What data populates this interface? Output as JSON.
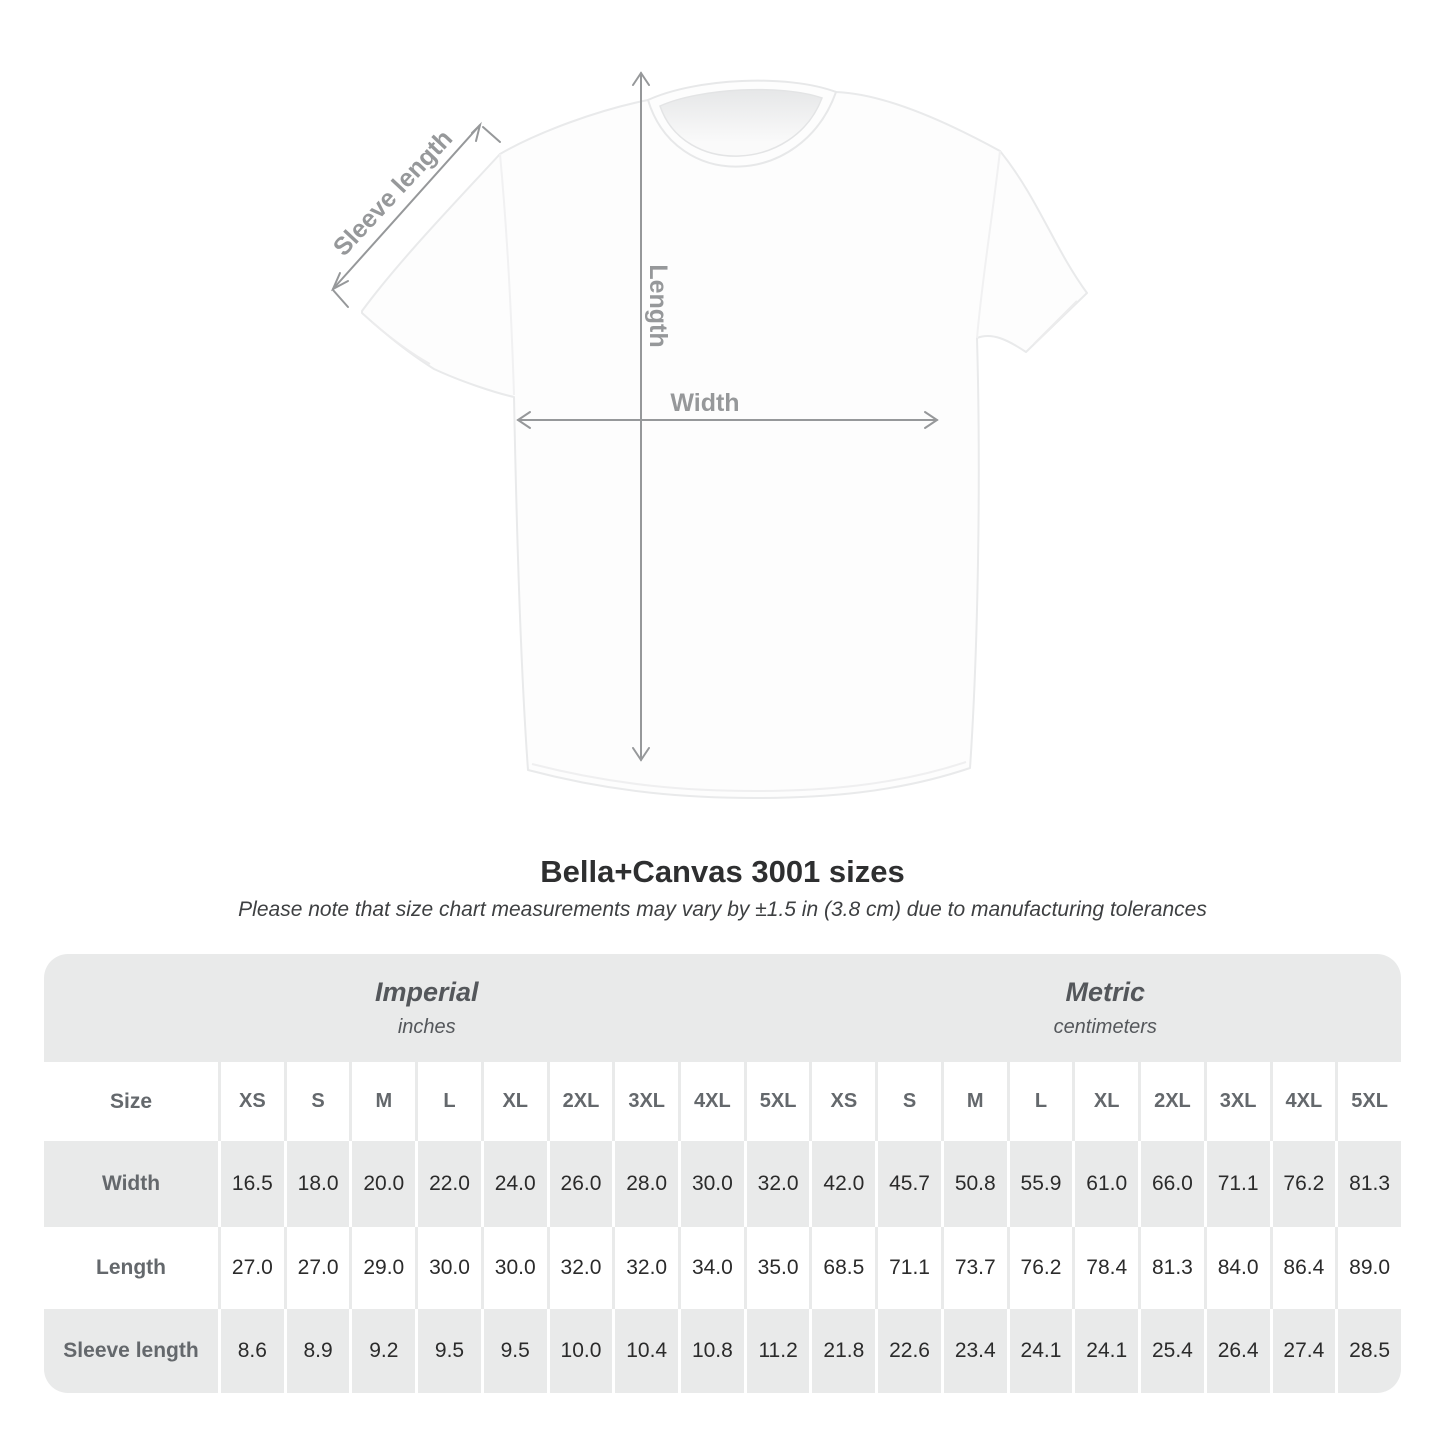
{
  "colors": {
    "band_gray": "#e9eaea",
    "arrow_gray": "#96989a",
    "label_text": "#64686c",
    "value_text": "#2b2b2b",
    "title_text": "#2e2f30"
  },
  "diagram": {
    "sleeve_label": "Sleeve length",
    "length_label": "Length",
    "width_label": "Width"
  },
  "heading": {
    "title": "Bella+Canvas 3001 sizes",
    "subtitle": "Please note that size chart measurements may vary by ±1.5 in (3.8 cm) due to manufacturing tolerances"
  },
  "size_table": {
    "corner_label": "Size",
    "groups": [
      {
        "name": "Imperial",
        "unit": "inches"
      },
      {
        "name": "Metric",
        "unit": "centimeters"
      }
    ],
    "sizes": [
      "XS",
      "S",
      "M",
      "L",
      "XL",
      "2XL",
      "3XL",
      "4XL",
      "5XL"
    ],
    "rows": [
      {
        "label": "Width",
        "imperial": [
          "16.5",
          "18.0",
          "20.0",
          "22.0",
          "24.0",
          "26.0",
          "28.0",
          "30.0",
          "32.0"
        ],
        "metric": [
          "42.0",
          "45.7",
          "50.8",
          "55.9",
          "61.0",
          "66.0",
          "71.1",
          "76.2",
          "81.3"
        ]
      },
      {
        "label": "Length",
        "imperial": [
          "27.0",
          "27.0",
          "29.0",
          "30.0",
          "30.0",
          "32.0",
          "32.0",
          "34.0",
          "35.0"
        ],
        "metric": [
          "68.5",
          "71.1",
          "73.7",
          "76.2",
          "78.4",
          "81.3",
          "84.0",
          "86.4",
          "89.0"
        ]
      },
      {
        "label": "Sleeve length",
        "imperial": [
          "8.6",
          "8.9",
          "9.2",
          "9.5",
          "9.5",
          "10.0",
          "10.4",
          "10.8",
          "11.2"
        ],
        "metric": [
          "21.8",
          "22.6",
          "23.4",
          "24.1",
          "24.1",
          "25.4",
          "26.4",
          "27.4",
          "28.5"
        ]
      }
    ]
  },
  "chart_data": {
    "type": "table",
    "title": "Bella+Canvas 3001 sizes",
    "note": "Please note that size chart measurements may vary by ±1.5 in (3.8 cm) due to manufacturing tolerances",
    "categories": [
      "XS",
      "S",
      "M",
      "L",
      "XL",
      "2XL",
      "3XL",
      "4XL",
      "5XL"
    ],
    "series": [
      {
        "name": "Width (inches)",
        "values": [
          16.5,
          18.0,
          20.0,
          22.0,
          24.0,
          26.0,
          28.0,
          30.0,
          32.0
        ]
      },
      {
        "name": "Length (inches)",
        "values": [
          27.0,
          27.0,
          29.0,
          30.0,
          30.0,
          32.0,
          32.0,
          34.0,
          35.0
        ]
      },
      {
        "name": "Sleeve length (inches)",
        "values": [
          8.6,
          8.9,
          9.2,
          9.5,
          9.5,
          10.0,
          10.4,
          10.8,
          11.2
        ]
      },
      {
        "name": "Width (cm)",
        "values": [
          42.0,
          45.7,
          50.8,
          55.9,
          61.0,
          66.0,
          71.1,
          76.2,
          81.3
        ]
      },
      {
        "name": "Length (cm)",
        "values": [
          68.5,
          71.1,
          73.7,
          76.2,
          78.4,
          81.3,
          84.0,
          86.4,
          89.0
        ]
      },
      {
        "name": "Sleeve length (cm)",
        "values": [
          21.8,
          22.6,
          23.4,
          24.1,
          24.1,
          25.4,
          26.4,
          27.4,
          28.5
        ]
      }
    ]
  }
}
